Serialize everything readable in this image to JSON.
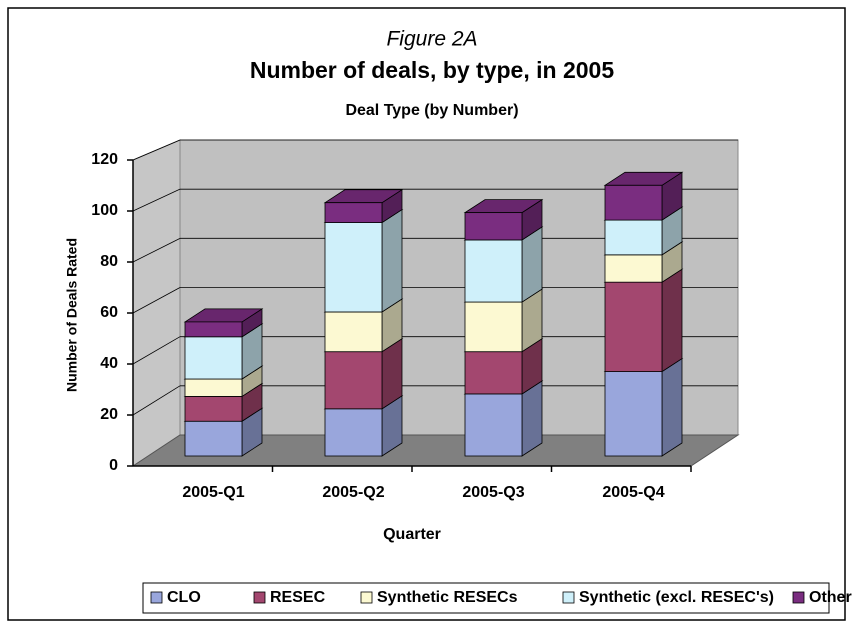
{
  "chart_data": {
    "type": "bar3d_stacked",
    "figure_label": "Figure 2A",
    "title": "Number of deals, by type, in 2005",
    "subtitle": "Deal Type (by Number)",
    "x_label": "Quarter",
    "y_label": "Number of Deals Rated",
    "categories": [
      "2005-Q1",
      "2005-Q2",
      "2005-Q3",
      "2005-Q4"
    ],
    "series": [
      {
        "name": "CLO",
        "color": "#99a6dc",
        "values": [
          14,
          19,
          25,
          34
        ]
      },
      {
        "name": "RESEC",
        "color": "#a3476f",
        "values": [
          10,
          23,
          17,
          36
        ]
      },
      {
        "name": "Synthetic RESECs",
        "color": "#fcf9d2",
        "values": [
          7,
          16,
          20,
          11
        ]
      },
      {
        "name": "Synthetic (excl. RESEC's)",
        "color": "#cff0fa",
        "values": [
          17,
          36,
          25,
          14
        ]
      },
      {
        "name": "Other",
        "color": "#7a2d80",
        "values": [
          6,
          8,
          11,
          14
        ]
      }
    ],
    "ylim": [
      0,
      120
    ],
    "yticks": [
      0,
      20,
      40,
      60,
      80,
      100,
      120
    ],
    "grid": true,
    "legend": "bottom"
  }
}
